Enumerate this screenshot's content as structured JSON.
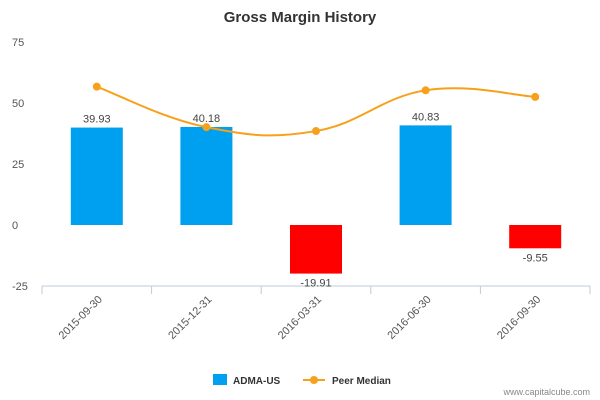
{
  "chart_data": {
    "type": "bar",
    "title": "Gross Margin History",
    "categories": [
      "2015-09-30",
      "2015-12-31",
      "2016-03-31",
      "2016-06-30",
      "2016-09-30"
    ],
    "series": [
      {
        "name": "ADMA-US",
        "type": "bar",
        "values": [
          39.93,
          40.18,
          -19.91,
          40.83,
          -9.55
        ],
        "labels": [
          "39.93",
          "40.18",
          "-19.91",
          "40.83",
          "-9.55"
        ],
        "color_positive": "#00a0f0",
        "color_negative": "#ff0000"
      },
      {
        "name": "Peer Median",
        "type": "line",
        "values": [
          56.7,
          40.1,
          38.5,
          55.2,
          52.5
        ],
        "color": "#f7a11a"
      }
    ],
    "yticks": [
      "75",
      "50",
      "25",
      "0",
      "-25"
    ],
    "ylim": [
      -25,
      75
    ],
    "grid": false,
    "legend_position": "bottom-center"
  },
  "credit": "www.capitalcube.com"
}
